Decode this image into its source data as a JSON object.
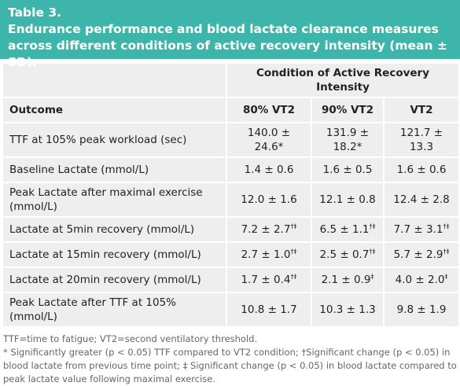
{
  "header": {
    "label": "Table 3.",
    "title": "Endurance performance and blood lactate clearance measures across different conditions of active recovery intensity (mean ± SD)."
  },
  "table": {
    "group_header": "Condition of Active Recovery Intensity",
    "columns": [
      "Outcome",
      "80% VT2",
      "90% VT2",
      "VT2"
    ],
    "rows": [
      {
        "outcome": "TTF at 105% peak workload (sec)",
        "values": [
          "140.0 ± 24.6*",
          "131.9 ± 18.2*",
          "121.7 ± 13.3"
        ]
      },
      {
        "outcome": "Baseline Lactate (mmol/L)",
        "values": [
          "1.4 ± 0.6",
          "1.6 ± 0.5",
          "1.6 ± 0.6"
        ]
      },
      {
        "outcome": "Peak Lactate after maximal exercise (mmol/L)",
        "values": [
          "12.0 ± 1.6",
          "12.1 ± 0.8",
          "12.4 ± 2.8"
        ]
      },
      {
        "outcome": "Lactate at 5min recovery (mmol/L)",
        "values": [
          {
            "text": "7.2 ± 2.7",
            "sup": "†‡"
          },
          {
            "text": "6.5 ± 1.1",
            "sup": "†‡"
          },
          {
            "text": "7.7 ± 3.1",
            "sup": "†‡"
          }
        ]
      },
      {
        "outcome": "Lactate at 15min recovery (mmol/L)",
        "values": [
          {
            "text": "2.7 ± 1.0",
            "sup": "†‡"
          },
          {
            "text": "2.5 ± 0.7",
            "sup": "†‡"
          },
          {
            "text": "5.7 ± 2.9",
            "sup": "†‡"
          }
        ]
      },
      {
        "outcome": "Lactate at 20min recovery (mmol/L)",
        "values": [
          {
            "text": "1.7 ± 0.4",
            "sup": "†‡"
          },
          {
            "text": "2.1 ± 0.9",
            "sup": "‡"
          },
          {
            "text": "4.0 ± 2.0",
            "sup": "‡"
          }
        ]
      },
      {
        "outcome": "Peak Lactate after TTF at 105% (mmol/L)",
        "values": [
          "10.8 ± 1.7",
          "10.3 ± 1.3",
          "9.8 ± 1.9"
        ]
      }
    ]
  },
  "footnotes": [
    "TTF=time to fatigue; VT2=second ventilatory threshold.",
    "* Significantly greater (p < 0.05) TTF compared to VT2 condition; †Significant change (p < 0.05) in blood lactate from previous time point; ‡ Significant change (p < 0.05) in blood lactate compared to peak lactate value following maximal exercise."
  ]
}
